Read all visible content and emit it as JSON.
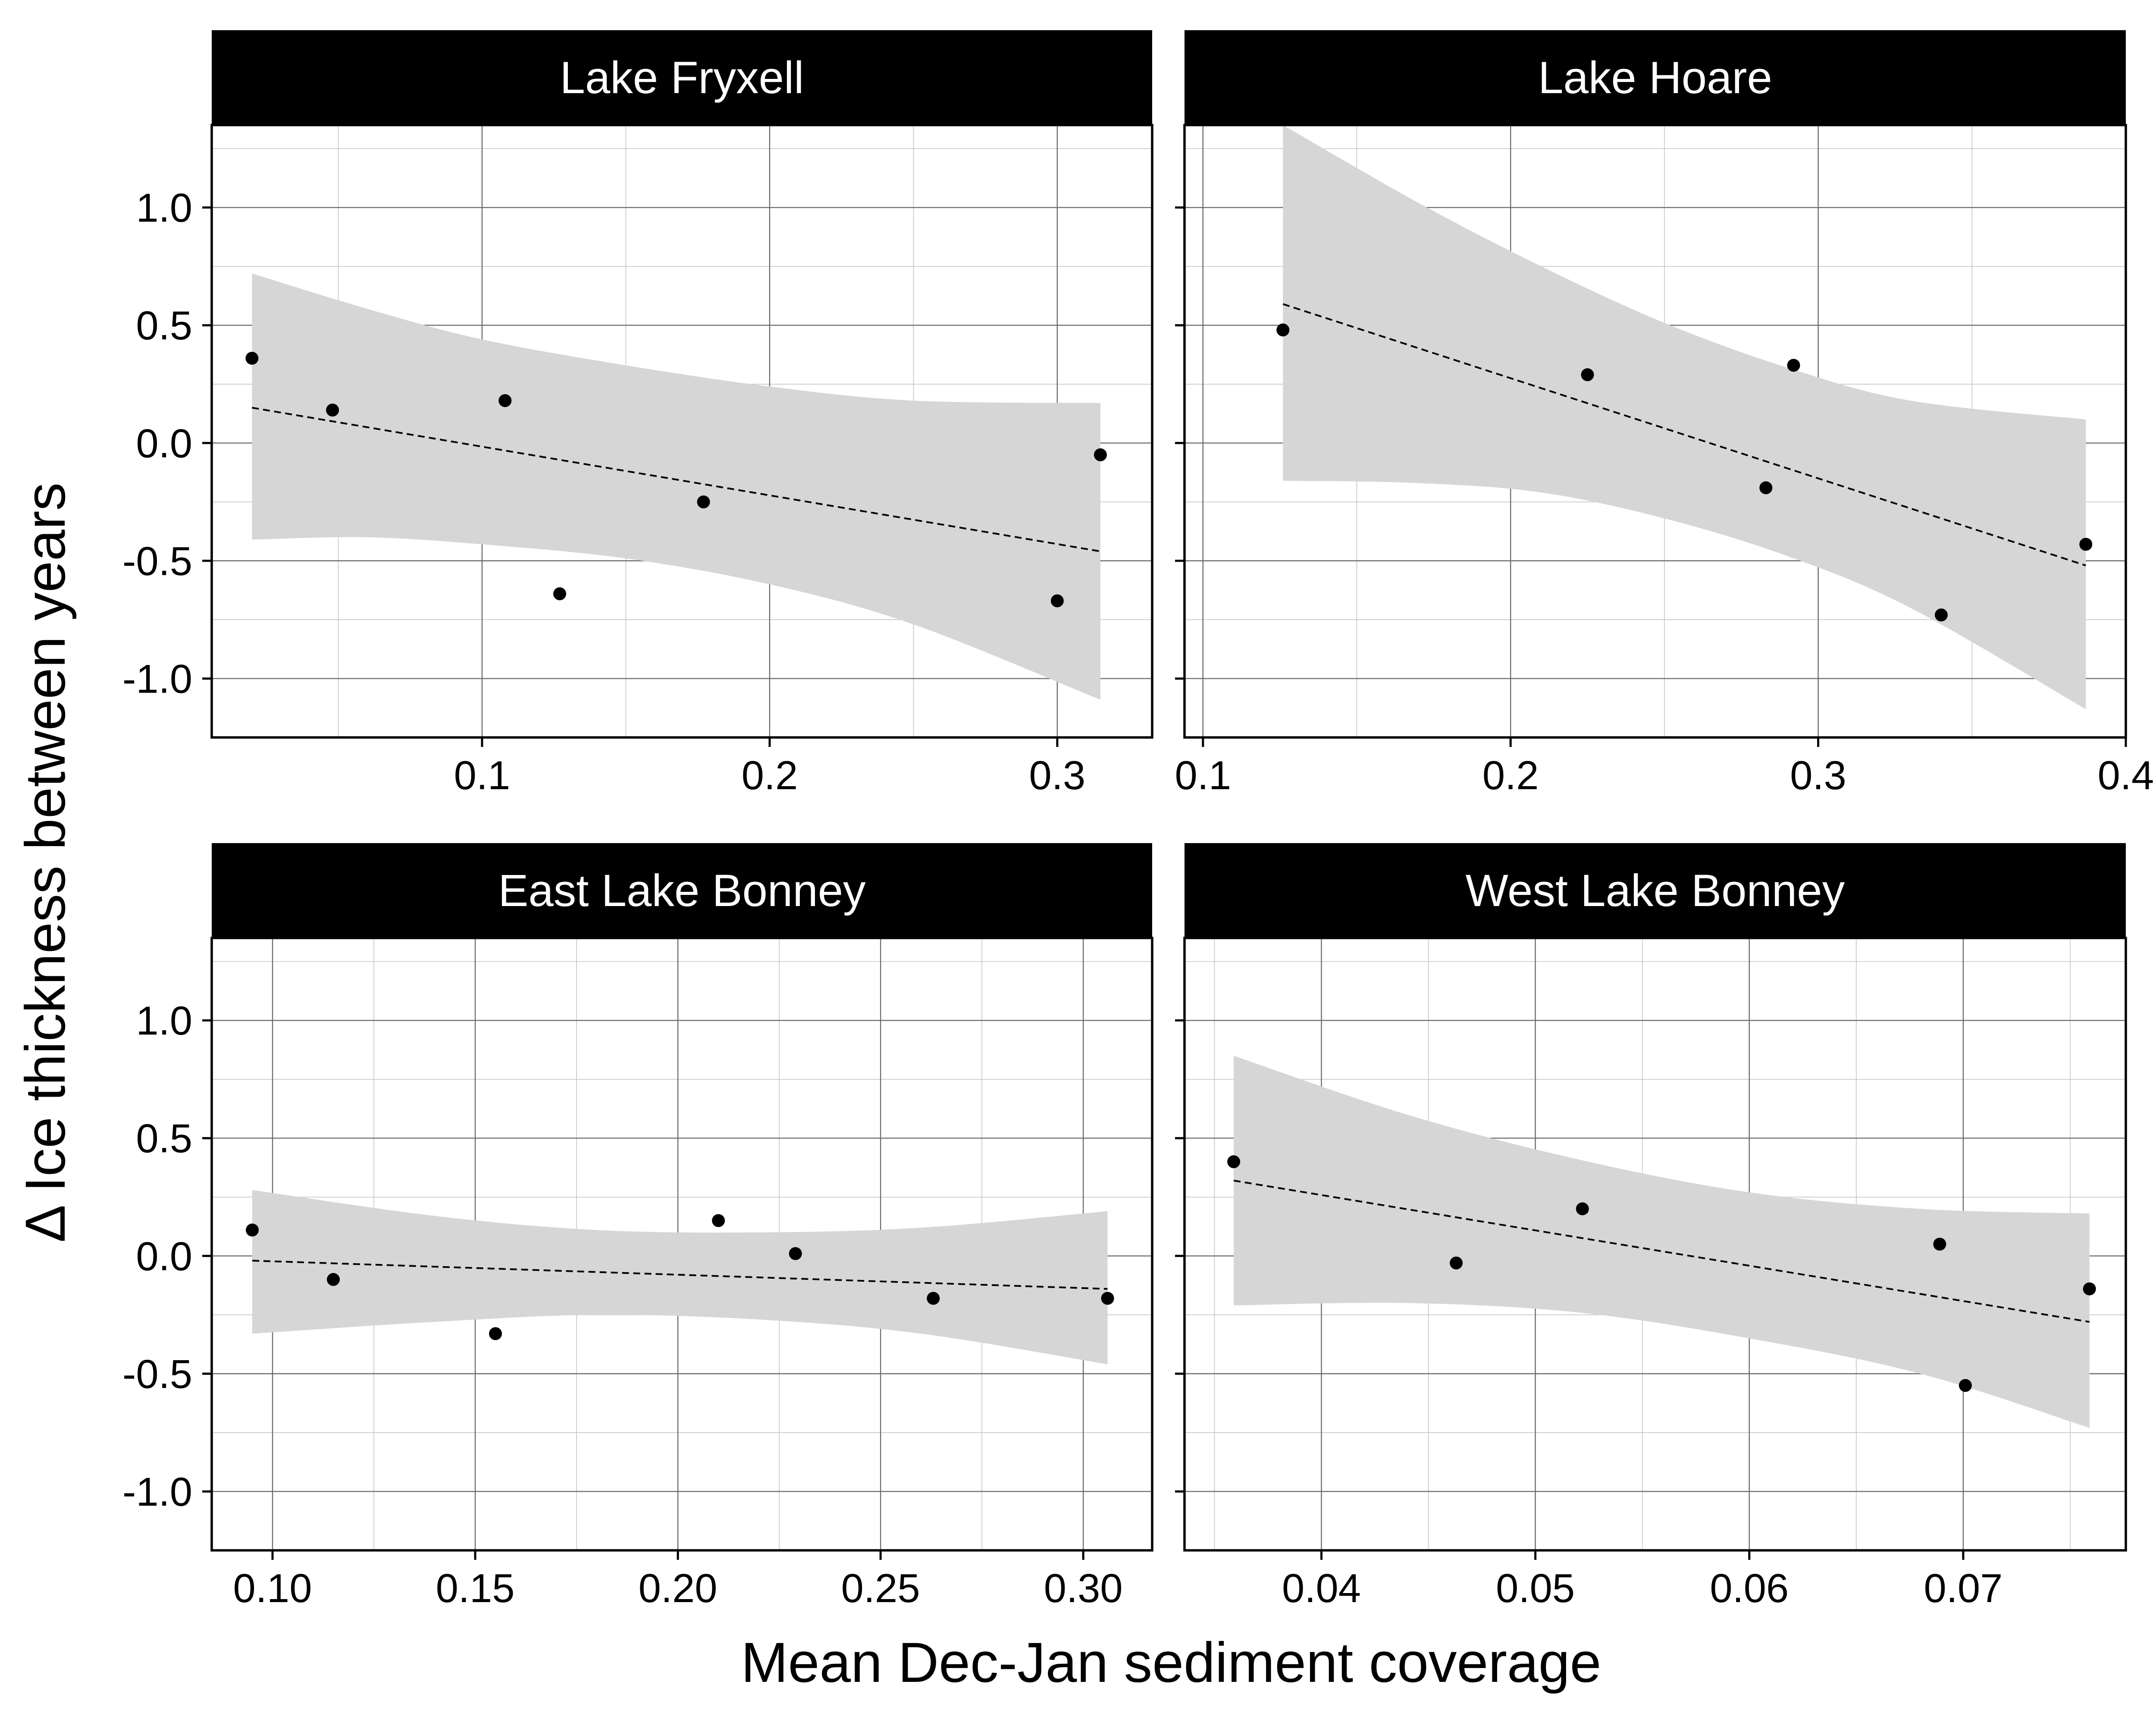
{
  "chart_data": {
    "type": "scatter",
    "xlabel": "Mean Dec-Jan sediment coverage",
    "ylabel": "Δ Ice thickness between years",
    "ylim": [
      -1.25,
      1.35
    ],
    "y_ticks": [
      -1.0,
      -0.5,
      0.0,
      0.5,
      1.0
    ],
    "y_tick_labels": [
      "-1.0",
      "-0.5",
      "0.0",
      "0.5",
      "1.0"
    ],
    "grid": true,
    "legend": "none",
    "panels": [
      {
        "title": "Lake Fryxell",
        "xlim": [
          0.006,
          0.333
        ],
        "x_ticks": [
          0.1,
          0.2,
          0.3
        ],
        "x_tick_labels": [
          "0.1",
          "0.2",
          "0.3"
        ],
        "points": [
          [
            0.02,
            0.36
          ],
          [
            0.048,
            0.14
          ],
          [
            0.108,
            0.18
          ],
          [
            0.127,
            -0.64
          ],
          [
            0.177,
            -0.25
          ],
          [
            0.3,
            -0.67
          ],
          [
            0.315,
            -0.05
          ]
        ],
        "fit": [
          [
            0.02,
            0.15
          ],
          [
            0.315,
            -0.46
          ]
        ],
        "ci_upper": [
          [
            0.02,
            0.72
          ],
          [
            0.06,
            0.57
          ],
          [
            0.1,
            0.44
          ],
          [
            0.15,
            0.33
          ],
          [
            0.2,
            0.24
          ],
          [
            0.25,
            0.18
          ],
          [
            0.315,
            0.17
          ]
        ],
        "ci_lower": [
          [
            0.02,
            -0.41
          ],
          [
            0.06,
            -0.4
          ],
          [
            0.1,
            -0.43
          ],
          [
            0.15,
            -0.49
          ],
          [
            0.2,
            -0.6
          ],
          [
            0.25,
            -0.77
          ],
          [
            0.315,
            -1.09
          ]
        ]
      },
      {
        "title": "Lake Hoare",
        "xlim": [
          0.094,
          0.4
        ],
        "x_ticks": [
          0.1,
          0.2,
          0.3,
          0.4
        ],
        "x_tick_labels": [
          "0.1",
          "0.2",
          "0.3",
          "0.4"
        ],
        "points": [
          [
            0.126,
            0.48
          ],
          [
            0.225,
            0.29
          ],
          [
            0.283,
            -0.19
          ],
          [
            0.292,
            0.33
          ],
          [
            0.34,
            -0.73
          ],
          [
            0.387,
            -0.43
          ]
        ],
        "fit": [
          [
            0.126,
            0.59
          ],
          [
            0.387,
            -0.52
          ]
        ],
        "ci_upper": [
          [
            0.126,
            1.35
          ],
          [
            0.17,
            1.02
          ],
          [
            0.21,
            0.75
          ],
          [
            0.25,
            0.51
          ],
          [
            0.29,
            0.32
          ],
          [
            0.33,
            0.18
          ],
          [
            0.387,
            0.1
          ]
        ],
        "ci_lower": [
          [
            0.126,
            -0.16
          ],
          [
            0.17,
            -0.17
          ],
          [
            0.21,
            -0.21
          ],
          [
            0.25,
            -0.32
          ],
          [
            0.29,
            -0.48
          ],
          [
            0.33,
            -0.7
          ],
          [
            0.387,
            -1.13
          ]
        ]
      },
      {
        "title": "East Lake Bonney",
        "xlim": [
          0.085,
          0.317
        ],
        "x_ticks": [
          0.1,
          0.15,
          0.2,
          0.25,
          0.3
        ],
        "x_tick_labels": [
          "0.10",
          "0.15",
          "0.20",
          "0.25",
          "0.30"
        ],
        "points": [
          [
            0.095,
            0.11
          ],
          [
            0.115,
            -0.1
          ],
          [
            0.155,
            -0.33
          ],
          [
            0.21,
            0.15
          ],
          [
            0.229,
            0.01
          ],
          [
            0.263,
            -0.18
          ],
          [
            0.306,
            -0.18
          ]
        ],
        "fit": [
          [
            0.095,
            -0.02
          ],
          [
            0.306,
            -0.14
          ]
        ],
        "ci_upper": [
          [
            0.095,
            0.28
          ],
          [
            0.14,
            0.17
          ],
          [
            0.18,
            0.11
          ],
          [
            0.22,
            0.1
          ],
          [
            0.26,
            0.12
          ],
          [
            0.306,
            0.19
          ]
        ],
        "ci_lower": [
          [
            0.095,
            -0.33
          ],
          [
            0.14,
            -0.28
          ],
          [
            0.18,
            -0.25
          ],
          [
            0.22,
            -0.27
          ],
          [
            0.26,
            -0.33
          ],
          [
            0.306,
            -0.46
          ]
        ]
      },
      {
        "title": "West Lake Bonney",
        "xlim": [
          0.0336,
          0.0776
        ],
        "x_ticks": [
          0.04,
          0.05,
          0.06,
          0.07
        ],
        "x_tick_labels": [
          "0.04",
          "0.05",
          "0.06",
          "0.07"
        ],
        "points": [
          [
            0.0359,
            0.4
          ],
          [
            0.0463,
            -0.03
          ],
          [
            0.0522,
            0.2
          ],
          [
            0.0689,
            0.05
          ],
          [
            0.0701,
            -0.55
          ],
          [
            0.0759,
            -0.14
          ]
        ],
        "fit": [
          [
            0.0359,
            0.32
          ],
          [
            0.0759,
            -0.28
          ]
        ],
        "ci_upper": [
          [
            0.0359,
            0.85
          ],
          [
            0.044,
            0.6
          ],
          [
            0.052,
            0.41
          ],
          [
            0.06,
            0.27
          ],
          [
            0.068,
            0.2
          ],
          [
            0.0759,
            0.18
          ]
        ],
        "ci_lower": [
          [
            0.0359,
            -0.21
          ],
          [
            0.044,
            -0.2
          ],
          [
            0.052,
            -0.24
          ],
          [
            0.06,
            -0.35
          ],
          [
            0.068,
            -0.5
          ],
          [
            0.0759,
            -0.73
          ]
        ]
      }
    ]
  }
}
